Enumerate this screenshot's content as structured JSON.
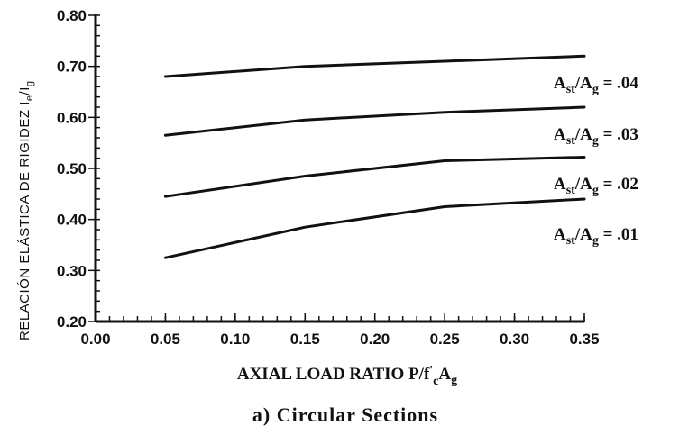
{
  "chart_data": {
    "type": "line",
    "caption": "a) Circular Sections",
    "xlabel": "AXIAL LOAD RATIO P/f'cAg",
    "ylabel": "RELACIÓN ELÁSTICA DE RIGIDEZ Ie/Ig",
    "xlim": [
      0.0,
      0.35
    ],
    "ylim": [
      0.2,
      0.8
    ],
    "grid": false,
    "x_ticks": [
      "0.00",
      "0.05",
      "0.10",
      "0.15",
      "0.20",
      "0.25",
      "0.30",
      "0.35"
    ],
    "y_ticks": [
      "0.20",
      "0.30",
      "0.40",
      "0.50",
      "0.60",
      "0.70",
      "0.80"
    ],
    "series": [
      {
        "name": "Ast/Ag = .04",
        "x": [
          0.05,
          0.15,
          0.25,
          0.35
        ],
        "y": [
          0.68,
          0.7,
          0.71,
          0.72
        ]
      },
      {
        "name": "Ast/Ag = .03",
        "x": [
          0.05,
          0.15,
          0.25,
          0.35
        ],
        "y": [
          0.565,
          0.595,
          0.61,
          0.62
        ]
      },
      {
        "name": "Ast/Ag = .02",
        "x": [
          0.05,
          0.15,
          0.25,
          0.35
        ],
        "y": [
          0.445,
          0.485,
          0.515,
          0.522
        ]
      },
      {
        "name": "Ast/Ag = .01",
        "x": [
          0.05,
          0.15,
          0.25,
          0.35
        ],
        "y": [
          0.325,
          0.385,
          0.425,
          0.44
        ]
      }
    ],
    "series_label_parts": [
      {
        "base": "A",
        "sub": "st",
        "mid": "/A",
        "sub2": "g",
        "tail": " = .04"
      },
      {
        "base": "A",
        "sub": "st",
        "mid": "/A",
        "sub2": "g",
        "tail": " = .03"
      },
      {
        "base": "A",
        "sub": "st",
        "mid": "/A",
        "sub2": "g",
        "tail": " = .02"
      },
      {
        "base": "A",
        "sub": "st",
        "mid": "/A",
        "sub2": "g",
        "tail": " = .01"
      }
    ],
    "ylabel_parts": {
      "main": "RELACIÓN ELÁSTICA DE RIGIDEZ I",
      "sub1": "e",
      "mid": "/I",
      "sub2": "g"
    },
    "xlabel_parts": {
      "main": "AXIAL LOAD RATIO P/f",
      "sup": "'",
      "sub1": "c",
      "mid": "A",
      "sub2": "g"
    }
  }
}
